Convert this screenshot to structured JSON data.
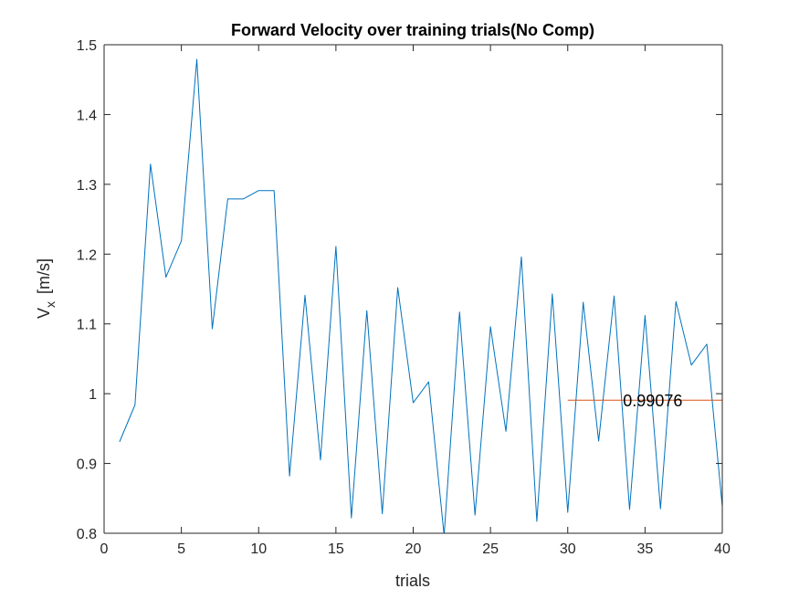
{
  "chart_data": {
    "type": "line",
    "title": "Forward Velocity over training trials(No Comp)",
    "xlabel": "trials",
    "ylabel_main": "V",
    "ylabel_sub": "x",
    "ylabel_unit": "[m/s]",
    "xlim": [
      0,
      40
    ],
    "ylim": [
      0.8,
      1.5
    ],
    "xticks": [
      0,
      5,
      10,
      15,
      20,
      25,
      30,
      35,
      40
    ],
    "xtick_labels": [
      "0",
      "5",
      "10",
      "15",
      "20",
      "25",
      "30",
      "35",
      "40"
    ],
    "yticks": [
      0.8,
      0.9,
      1.0,
      1.1,
      1.2,
      1.3,
      1.4,
      1.5
    ],
    "ytick_labels": [
      "0.8",
      "0.9",
      "1",
      "1.1",
      "1.2",
      "1.3",
      "1.4",
      "1.5"
    ],
    "grid": false,
    "series": [
      {
        "color": "#0072BD",
        "x": [
          1,
          2,
          3,
          4,
          5,
          6,
          7,
          8,
          9,
          10,
          11,
          12,
          13,
          14,
          15,
          16,
          17,
          18,
          19,
          20,
          21,
          22,
          23,
          24,
          25,
          26,
          27,
          28,
          29,
          30,
          31,
          32,
          33,
          34,
          35,
          36,
          37,
          38,
          39,
          40
        ],
        "values": [
          0.931,
          0.984,
          1.329,
          1.167,
          1.219,
          1.479,
          1.093,
          1.279,
          1.279,
          1.291,
          1.291,
          0.882,
          1.141,
          0.905,
          1.211,
          0.822,
          1.119,
          0.828,
          1.152,
          0.987,
          1.017,
          0.797,
          1.117,
          0.826,
          1.096,
          0.946,
          1.196,
          0.817,
          1.143,
          0.83,
          1.131,
          0.932,
          1.14,
          0.834,
          1.112,
          0.835,
          1.132,
          1.041,
          1.071,
          0.838
        ]
      },
      {
        "color": "#D95319",
        "x": [
          30,
          40
        ],
        "values": [
          0.99076,
          0.99076
        ]
      }
    ],
    "annotations": [
      {
        "text": "0.99076",
        "x": 35.5,
        "y": 0.99076
      }
    ]
  }
}
